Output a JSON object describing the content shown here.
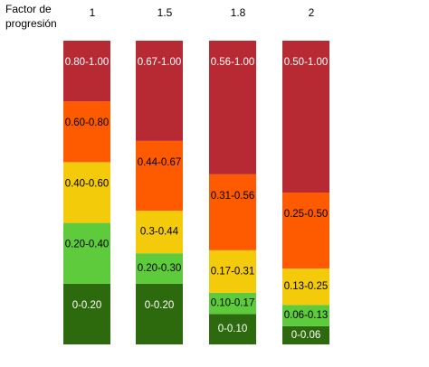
{
  "chart_data": {
    "type": "stacked_bar",
    "title": "Factor de progresión",
    "categories": [
      "1",
      "1.5",
      "1.8",
      "2"
    ],
    "ylim": [
      0,
      1
    ],
    "series": [
      {
        "color": "#2d6a0e",
        "text_color": "#ffffff",
        "values": [
          0.2,
          0.2,
          0.1,
          0.06
        ],
        "value_labels": [
          "0-0.20",
          "0-0.20",
          "0-0.10",
          "0-0.06"
        ]
      },
      {
        "color": "#5ecb3c",
        "text_color": "#000000",
        "values": [
          0.2,
          0.1,
          0.07,
          0.07
        ],
        "value_labels": [
          "0.20-0.40",
          "0.20-0.30",
          "0.10-0.17",
          "0.06-0.13"
        ]
      },
      {
        "color": "#f4cb0a",
        "text_color": "#000000",
        "values": [
          0.2,
          0.14,
          0.14,
          0.12
        ],
        "value_labels": [
          "0.40-0.60",
          "0.3-0.44",
          "0.17-0.31",
          "0.13-0.25"
        ]
      },
      {
        "color": "#fe5b01",
        "text_color": "#000000",
        "values": [
          0.2,
          0.23,
          0.25,
          0.25
        ],
        "value_labels": [
          "0.60-0.80",
          "0.44-0.67",
          "0.31-0.56",
          "0.25-0.50"
        ]
      },
      {
        "color": "#b72a33",
        "text_color": "#ffffff",
        "values": [
          0.2,
          0.33,
          0.44,
          0.5
        ],
        "value_labels": [
          "0.80-1.00",
          "0.67-1.00",
          "0.56-1.00",
          "0.50-1.00"
        ]
      }
    ]
  }
}
